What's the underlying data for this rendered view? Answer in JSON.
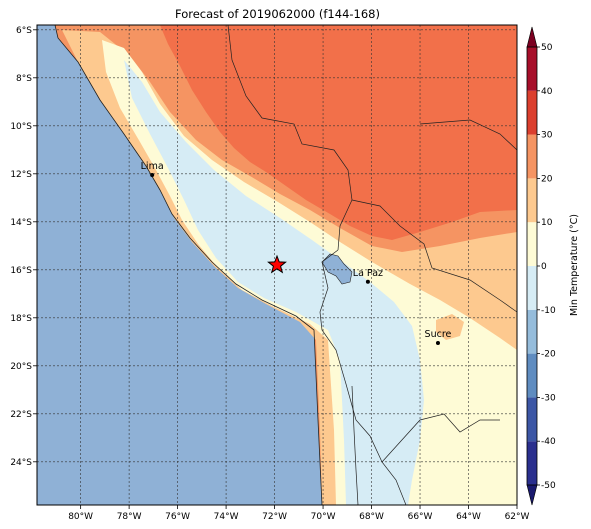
{
  "title": "Forecast of 2019062000 (f144-168)",
  "map": {
    "lon_range": [
      -81.8,
      -62.0
    ],
    "lat_range": [
      -25.8,
      -5.8
    ],
    "x_ticks": [
      {
        "lon": -80,
        "label": "80°W"
      },
      {
        "lon": -78,
        "label": "78°W"
      },
      {
        "lon": -76,
        "label": "76°W"
      },
      {
        "lon": -74,
        "label": "74°W"
      },
      {
        "lon": -72,
        "label": "72°W"
      },
      {
        "lon": -70,
        "label": "70°W"
      },
      {
        "lon": -68,
        "label": "68°W"
      },
      {
        "lon": -66,
        "label": "66°W"
      },
      {
        "lon": -64,
        "label": "64°W"
      },
      {
        "lon": -62,
        "label": "62°W"
      }
    ],
    "y_ticks": [
      {
        "lat": -6,
        "label": "6°S"
      },
      {
        "lat": -8,
        "label": "8°S"
      },
      {
        "lat": -10,
        "label": "10°S"
      },
      {
        "lat": -12,
        "label": "12°S"
      },
      {
        "lat": -14,
        "label": "14°S"
      },
      {
        "lat": -16,
        "label": "16°S"
      },
      {
        "lat": -18,
        "label": "18°S"
      },
      {
        "lat": -20,
        "label": "20°S"
      },
      {
        "lat": -22,
        "label": "22°S"
      },
      {
        "lat": -24,
        "label": "24°S"
      }
    ],
    "grid": true,
    "ocean_color": "#8fb1d6",
    "cities": [
      {
        "name": "Lima",
        "lon": -77.05,
        "lat": -12.05
      },
      {
        "name": "La Paz",
        "lon": -68.15,
        "lat": -16.5
      },
      {
        "name": "Sucre",
        "lon": -65.26,
        "lat": -19.05
      }
    ],
    "marker": {
      "name": "forecast-point-star",
      "lon": -71.9,
      "lat": -15.8,
      "color": "#ff0000"
    }
  },
  "colorbar": {
    "label": "Min Temperature (°C)",
    "min": -50,
    "max": 50,
    "extend": "both",
    "tick_labels": [
      "-50",
      "-40",
      "-30",
      "-20",
      "-10",
      "0",
      "10",
      "20",
      "30",
      "40",
      "50"
    ],
    "bands": [
      {
        "from": -50,
        "to": -40,
        "color": "#2a2f8e"
      },
      {
        "from": -40,
        "to": -30,
        "color": "#3c56a5"
      },
      {
        "from": -30,
        "to": -20,
        "color": "#5f8cc0"
      },
      {
        "from": -20,
        "to": -10,
        "color": "#95bcdb"
      },
      {
        "from": -10,
        "to": 0,
        "color": "#d6ecf5"
      },
      {
        "from": 0,
        "to": 10,
        "color": "#fefbd6"
      },
      {
        "from": 10,
        "to": 20,
        "color": "#fdc98f"
      },
      {
        "from": 20,
        "to": 30,
        "color": "#f59462"
      },
      {
        "from": 30,
        "to": 40,
        "color": "#db3f2e"
      },
      {
        "from": 40,
        "to": 50,
        "color": "#a70f2a"
      }
    ],
    "under_color": "#1a1a6e",
    "over_color": "#7b0021"
  }
}
